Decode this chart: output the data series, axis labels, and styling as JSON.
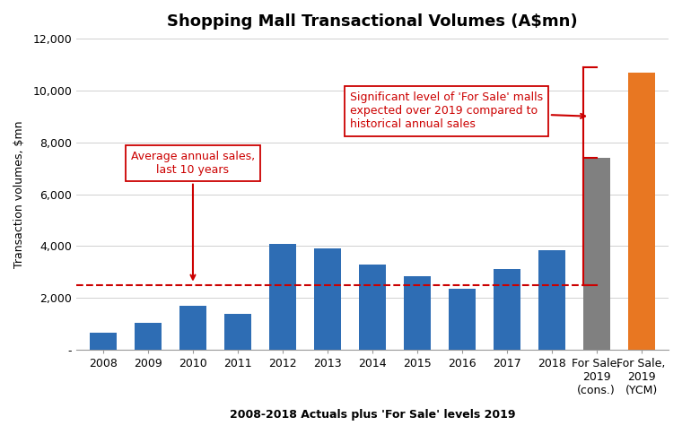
{
  "title": "Shopping Mall Transactional Volumes (A$mn)",
  "xlabel": "2008-2018 Actuals plus 'For Sale' levels 2019",
  "ylabel": "Transaction volumes, $mn",
  "categories": [
    "2008",
    "2009",
    "2010",
    "2011",
    "2012",
    "2013",
    "2014",
    "2015",
    "2016",
    "2017",
    "2018",
    "For Sale,\n2019\n(cons.)",
    "For Sale,\n2019\n(YCM)"
  ],
  "values": [
    650,
    1050,
    1700,
    1400,
    4100,
    3900,
    3300,
    2850,
    2350,
    3100,
    3850,
    7400,
    10700
  ],
  "bar_colors": [
    "#2e6db4",
    "#2e6db4",
    "#2e6db4",
    "#2e6db4",
    "#2e6db4",
    "#2e6db4",
    "#2e6db4",
    "#2e6db4",
    "#2e6db4",
    "#2e6db4",
    "#2e6db4",
    "#808080",
    "#e87722"
  ],
  "avg_line_y": 2480,
  "ylim": [
    0,
    12000
  ],
  "yticks": [
    0,
    2000,
    4000,
    6000,
    8000,
    10000,
    12000
  ],
  "ytick_labels": [
    "-",
    "2,000",
    "4,000",
    "6,000",
    "8,000",
    "10,000",
    "12,000"
  ],
  "avg_line_color": "#cc0000",
  "background_color": "#ffffff",
  "grid_color": "#d0d0d0",
  "annotation_color": "#cc0000",
  "title_fontsize": 13,
  "label_fontsize": 9,
  "tick_fontsize": 9
}
